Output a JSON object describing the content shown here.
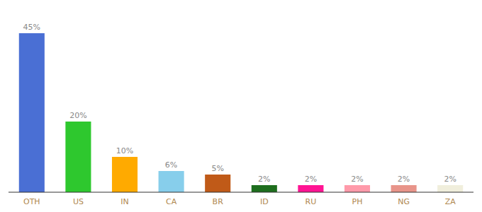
{
  "chart_data": {
    "type": "bar",
    "categories": [
      "OTH",
      "US",
      "IN",
      "CA",
      "BR",
      "ID",
      "RU",
      "PH",
      "NG",
      "ZA"
    ],
    "values": [
      45,
      20,
      10,
      6,
      5,
      2,
      2,
      2,
      2,
      2
    ],
    "value_labels": [
      "45%",
      "20%",
      "10%",
      "6%",
      "5%",
      "2%",
      "2%",
      "2%",
      "2%",
      "2%"
    ],
    "colors": [
      "#4a6fd4",
      "#2ec82e",
      "#ffaa00",
      "#87ceeb",
      "#c05a18",
      "#1e6e1e",
      "#ff1493",
      "#ff9aaa",
      "#e8948a",
      "#f0eedc"
    ],
    "ylim": [
      0,
      52
    ],
    "data_labels": true,
    "tick_labels": "x",
    "grid": false
  }
}
